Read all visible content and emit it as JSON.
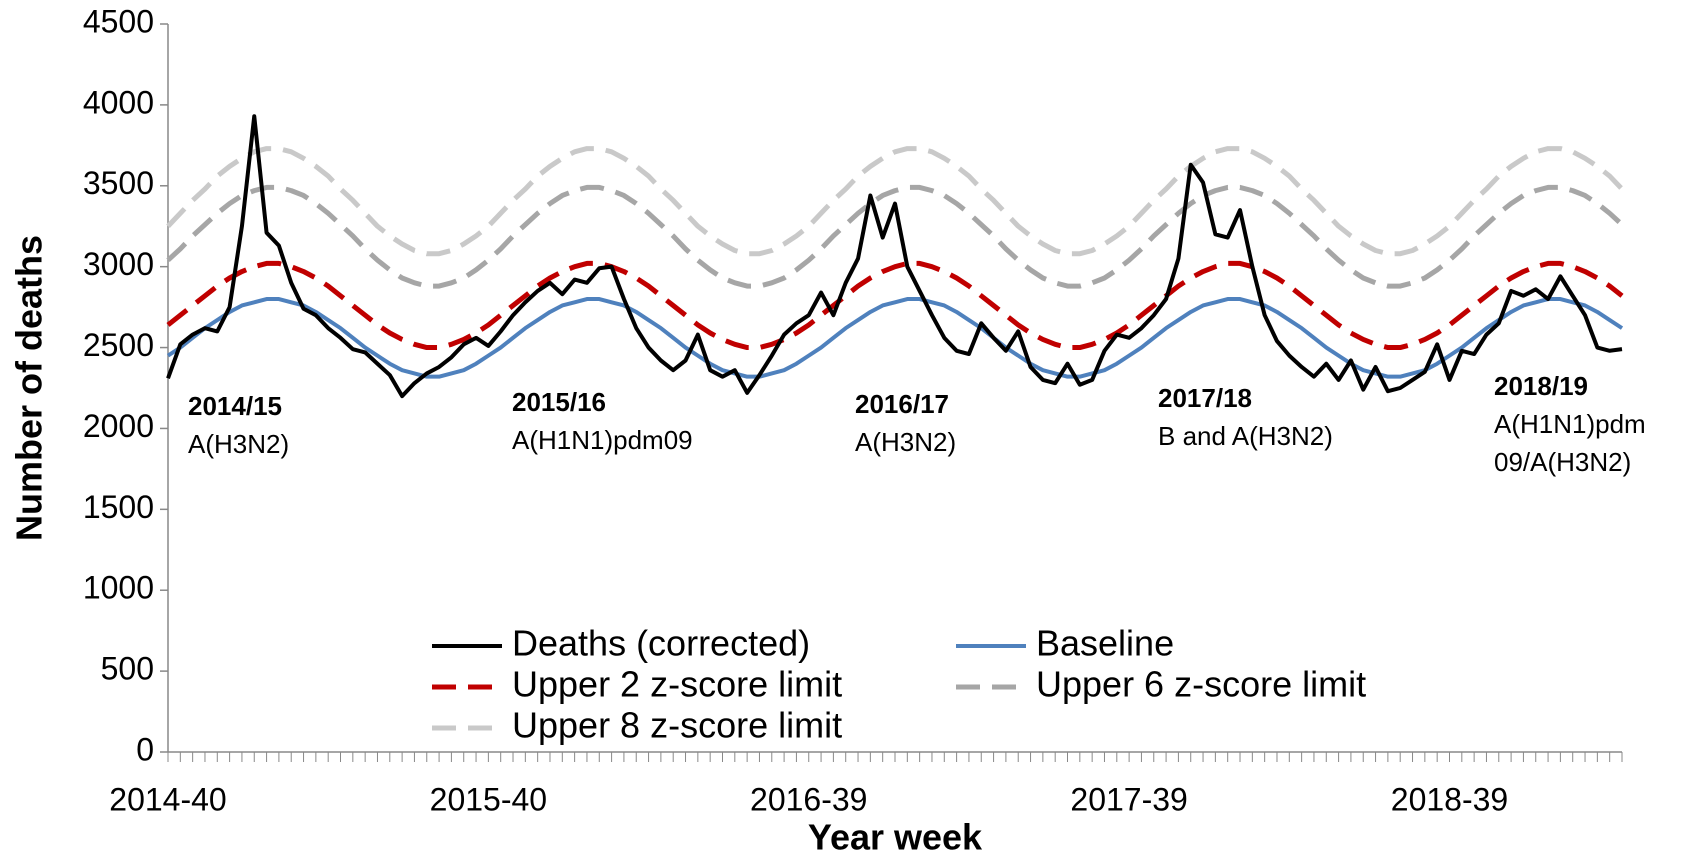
{
  "chart_data": {
    "type": "line",
    "x_label": "Year week",
    "y_label": "Number of deaths",
    "ylim": [
      0,
      4500
    ],
    "yticks": [
      0,
      500,
      1000,
      1500,
      2000,
      2500,
      3000,
      3500,
      4000,
      4500
    ],
    "categories": [
      "2014-40",
      null,
      null,
      null,
      null,
      null,
      null,
      null,
      null,
      null,
      null,
      null,
      null,
      null,
      null,
      null,
      null,
      null,
      null,
      null,
      null,
      null,
      null,
      null,
      null,
      null,
      "2015-40",
      null,
      null,
      null,
      null,
      null,
      null,
      null,
      null,
      null,
      null,
      null,
      null,
      null,
      null,
      null,
      null,
      null,
      null,
      null,
      null,
      null,
      null,
      null,
      null,
      null,
      "2016-39",
      null,
      null,
      null,
      null,
      null,
      null,
      null,
      null,
      null,
      null,
      null,
      null,
      null,
      null,
      null,
      null,
      null,
      null,
      null,
      null,
      null,
      null,
      null,
      null,
      null,
      "2017-39",
      null,
      null,
      null,
      null,
      null,
      null,
      null,
      null,
      null,
      null,
      null,
      null,
      null,
      null,
      null,
      null,
      null,
      null,
      null,
      null,
      null,
      null,
      null,
      null,
      null,
      "2018-39",
      null,
      null,
      null,
      null,
      null,
      null,
      null,
      null,
      null,
      null,
      null,
      null,
      null,
      null
    ],
    "series": [
      {
        "name": "Deaths (corrected)",
        "color": "#000000",
        "dash": false,
        "values": [
          2310,
          2520,
          2580,
          2620,
          2600,
          2750,
          3250,
          3930,
          3210,
          3130,
          2900,
          2740,
          2700,
          2620,
          2560,
          2490,
          2470,
          2400,
          2330,
          2200,
          2280,
          2340,
          2380,
          2440,
          2520,
          2560,
          2510,
          2600,
          2700,
          2780,
          2850,
          2900,
          2830,
          2920,
          2900,
          2990,
          3000,
          2800,
          2620,
          2500,
          2420,
          2360,
          2420,
          2580,
          2360,
          2320,
          2360,
          2220,
          2330,
          2450,
          2580,
          2650,
          2700,
          2840,
          2700,
          2900,
          3050,
          3440,
          3180,
          3390,
          3000,
          2850,
          2700,
          2560,
          2480,
          2460,
          2650,
          2560,
          2480,
          2600,
          2380,
          2300,
          2280,
          2400,
          2270,
          2300,
          2480,
          2580,
          2560,
          2620,
          2700,
          2800,
          3050,
          3630,
          3520,
          3200,
          3180,
          3350,
          3000,
          2700,
          2540,
          2450,
          2380,
          2320,
          2400,
          2300,
          2420,
          2240,
          2380,
          2230,
          2250,
          2300,
          2350,
          2520,
          2300,
          2480,
          2460,
          2580,
          2650,
          2850,
          2820,
          2860,
          2800,
          2940,
          2820,
          2700,
          2500,
          2480,
          2490
        ]
      },
      {
        "name": "Baseline",
        "color": "#4f81bd",
        "dash": false,
        "values": [
          2450,
          2500,
          2560,
          2620,
          2670,
          2720,
          2760,
          2780,
          2800,
          2800,
          2780,
          2760,
          2720,
          2670,
          2620,
          2560,
          2500,
          2450,
          2400,
          2360,
          2340,
          2320,
          2320,
          2340,
          2360,
          2400,
          2450,
          2500,
          2560,
          2620,
          2670,
          2720,
          2760,
          2780,
          2800,
          2800,
          2780,
          2760,
          2720,
          2670,
          2620,
          2560,
          2500,
          2450,
          2400,
          2360,
          2340,
          2320,
          2320,
          2340,
          2360,
          2400,
          2450,
          2500,
          2560,
          2620,
          2670,
          2720,
          2760,
          2780,
          2800,
          2800,
          2780,
          2760,
          2720,
          2670,
          2620,
          2560,
          2500,
          2450,
          2400,
          2360,
          2340,
          2320,
          2320,
          2340,
          2360,
          2400,
          2450,
          2500,
          2560,
          2620,
          2670,
          2720,
          2760,
          2780,
          2800,
          2800,
          2780,
          2760,
          2720,
          2670,
          2620,
          2560,
          2500,
          2450,
          2400,
          2360,
          2340,
          2320,
          2320,
          2340,
          2360,
          2400,
          2450,
          2500,
          2560,
          2620,
          2670,
          2720,
          2760,
          2780,
          2800,
          2800,
          2780,
          2760,
          2720,
          2670,
          2620
        ]
      },
      {
        "name": "Upper 2 z-score limit",
        "color": "#c00000",
        "dash": true,
        "values": [
          2640,
          2700,
          2760,
          2820,
          2880,
          2930,
          2970,
          3000,
          3020,
          3020,
          3000,
          2970,
          2930,
          2880,
          2820,
          2760,
          2700,
          2640,
          2590,
          2550,
          2520,
          2500,
          2500,
          2520,
          2550,
          2590,
          2640,
          2700,
          2760,
          2820,
          2880,
          2930,
          2970,
          3000,
          3020,
          3020,
          3000,
          2970,
          2930,
          2880,
          2820,
          2760,
          2700,
          2640,
          2590,
          2550,
          2520,
          2500,
          2500,
          2520,
          2550,
          2590,
          2640,
          2700,
          2760,
          2820,
          2880,
          2930,
          2970,
          3000,
          3020,
          3020,
          3000,
          2970,
          2930,
          2880,
          2820,
          2760,
          2700,
          2640,
          2590,
          2550,
          2520,
          2500,
          2500,
          2520,
          2550,
          2590,
          2640,
          2700,
          2760,
          2820,
          2880,
          2930,
          2970,
          3000,
          3020,
          3020,
          3000,
          2970,
          2930,
          2880,
          2820,
          2760,
          2700,
          2640,
          2590,
          2550,
          2520,
          2500,
          2500,
          2520,
          2550,
          2590,
          2640,
          2700,
          2760,
          2820,
          2880,
          2930,
          2970,
          3000,
          3020,
          3020,
          3000,
          2970,
          2930,
          2880,
          2820
        ]
      },
      {
        "name": "Upper 6 z-score limit",
        "color": "#a6a6a6",
        "dash": true,
        "values": [
          3040,
          3110,
          3190,
          3260,
          3330,
          3390,
          3440,
          3470,
          3490,
          3490,
          3470,
          3440,
          3390,
          3330,
          3260,
          3190,
          3110,
          3040,
          2980,
          2930,
          2900,
          2880,
          2880,
          2900,
          2930,
          2980,
          3040,
          3110,
          3190,
          3260,
          3330,
          3390,
          3440,
          3470,
          3490,
          3490,
          3470,
          3440,
          3390,
          3330,
          3260,
          3190,
          3110,
          3040,
          2980,
          2930,
          2900,
          2880,
          2880,
          2900,
          2930,
          2980,
          3040,
          3110,
          3190,
          3260,
          3330,
          3390,
          3440,
          3470,
          3490,
          3490,
          3470,
          3440,
          3390,
          3330,
          3260,
          3190,
          3110,
          3040,
          2980,
          2930,
          2900,
          2880,
          2880,
          2900,
          2930,
          2980,
          3040,
          3110,
          3190,
          3260,
          3330,
          3390,
          3440,
          3470,
          3490,
          3490,
          3470,
          3440,
          3390,
          3330,
          3260,
          3190,
          3110,
          3040,
          2980,
          2930,
          2900,
          2880,
          2880,
          2900,
          2930,
          2980,
          3040,
          3110,
          3190,
          3260,
          3330,
          3390,
          3440,
          3470,
          3490,
          3490,
          3470,
          3440,
          3390,
          3330,
          3260
        ]
      },
      {
        "name": "Upper 8 z-score limit",
        "color": "#c9c9c9",
        "dash": true,
        "values": [
          3250,
          3330,
          3410,
          3480,
          3560,
          3620,
          3670,
          3710,
          3730,
          3730,
          3710,
          3670,
          3620,
          3560,
          3480,
          3410,
          3330,
          3250,
          3190,
          3140,
          3100,
          3080,
          3080,
          3100,
          3140,
          3190,
          3250,
          3330,
          3410,
          3480,
          3560,
          3620,
          3670,
          3710,
          3730,
          3730,
          3710,
          3670,
          3620,
          3560,
          3480,
          3410,
          3330,
          3250,
          3190,
          3140,
          3100,
          3080,
          3080,
          3100,
          3140,
          3190,
          3250,
          3330,
          3410,
          3480,
          3560,
          3620,
          3670,
          3710,
          3730,
          3730,
          3710,
          3670,
          3620,
          3560,
          3480,
          3410,
          3330,
          3250,
          3190,
          3140,
          3100,
          3080,
          3080,
          3100,
          3140,
          3190,
          3250,
          3330,
          3410,
          3480,
          3560,
          3620,
          3670,
          3710,
          3730,
          3730,
          3710,
          3670,
          3620,
          3560,
          3480,
          3410,
          3330,
          3250,
          3190,
          3140,
          3100,
          3080,
          3080,
          3100,
          3140,
          3190,
          3250,
          3330,
          3410,
          3480,
          3560,
          3620,
          3670,
          3710,
          3730,
          3730,
          3710,
          3670,
          3620,
          3560,
          3480
        ]
      }
    ],
    "annotations": [
      {
        "title": "2014/15",
        "lines": [
          "A(H3N2)"
        ]
      },
      {
        "title": "2015/16",
        "lines": [
          "A(H1N1)pdm09"
        ]
      },
      {
        "title": "2016/17",
        "lines": [
          "A(H3N2)"
        ]
      },
      {
        "title": "2017/18",
        "lines": [
          "B and A(H3N2)"
        ]
      },
      {
        "title": "2018/19",
        "lines": [
          "A(H1N1)pdm",
          "09/A(H3N2)"
        ]
      }
    ]
  }
}
